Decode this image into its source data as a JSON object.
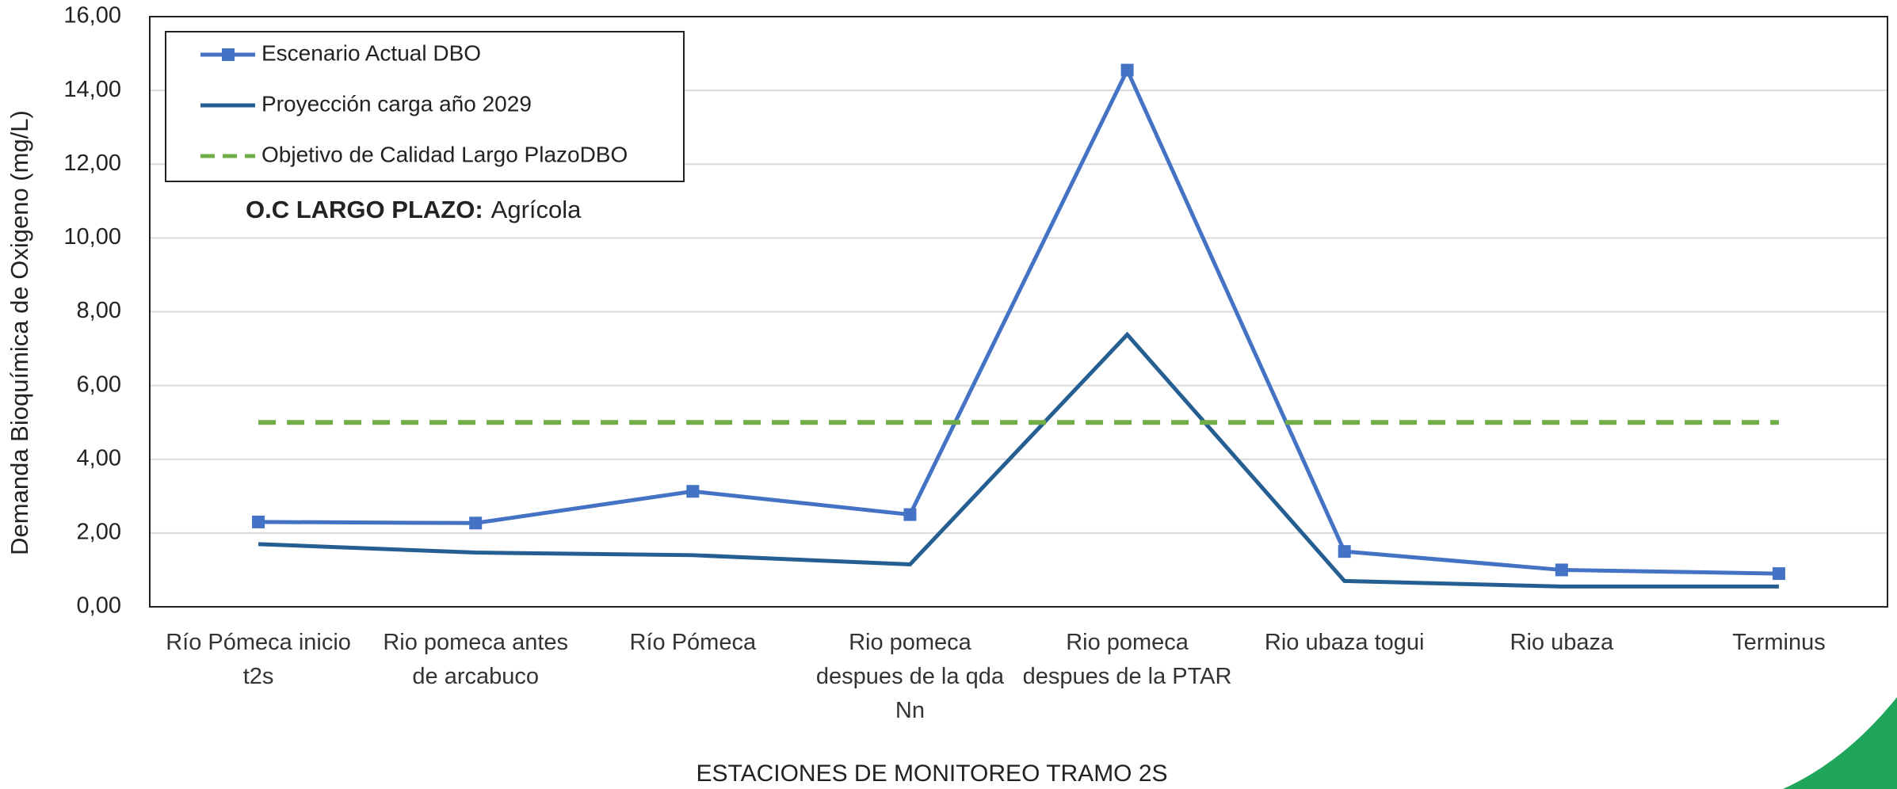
{
  "chart_data": {
    "type": "line",
    "y_label": "Demanda Bioquímica de Oxigeno  (mg/L)",
    "x_label": "ESTACIONES DE MONITOREO TRAMO 2S",
    "annotation": {
      "bold": "O.C LARGO PLAZO:",
      "text": "Agrícola",
      "color": "#1e6b2a"
    },
    "categories": [
      "Río Pómeca inicio t2s",
      "Rio pomeca antes de arcabuco",
      "Río Pómeca",
      "Rio pomeca despues de la qda Nn",
      "Rio pomeca despues de la PTAR",
      "Rio ubaza togui",
      "Rio ubaza",
      "Terminus"
    ],
    "series": [
      {
        "name": "Escenario Actual DBO",
        "color": "#4472c4",
        "marker": "square",
        "dash": false,
        "values": [
          2.3,
          2.27,
          3.13,
          2.5,
          14.55,
          1.5,
          1.0,
          0.9
        ]
      },
      {
        "name": "Proyección carga año 2029",
        "color": "#255e91",
        "marker": "none",
        "dash": false,
        "values": [
          1.7,
          1.47,
          1.4,
          1.15,
          7.38,
          0.7,
          0.55,
          0.55
        ]
      },
      {
        "name": "Objetivo de Calidad Largo PlazoDBO",
        "color": "#70ad47",
        "marker": "none",
        "dash": true,
        "values": [
          5,
          5,
          5,
          5,
          5,
          5,
          5,
          5
        ]
      }
    ],
    "ylim": [
      0,
      16
    ],
    "yticks": [
      {
        "value": 0,
        "label": "0,00"
      },
      {
        "value": 2,
        "label": "2,00"
      },
      {
        "value": 4,
        "label": "4,00"
      },
      {
        "value": 6,
        "label": "6,00"
      },
      {
        "value": 8,
        "label": "8,00"
      },
      {
        "value": 10,
        "label": "10,00"
      },
      {
        "value": 12,
        "label": "12,00"
      },
      {
        "value": 14,
        "label": "14,00"
      },
      {
        "value": 16,
        "label": "16,00"
      }
    ],
    "grid": true
  }
}
